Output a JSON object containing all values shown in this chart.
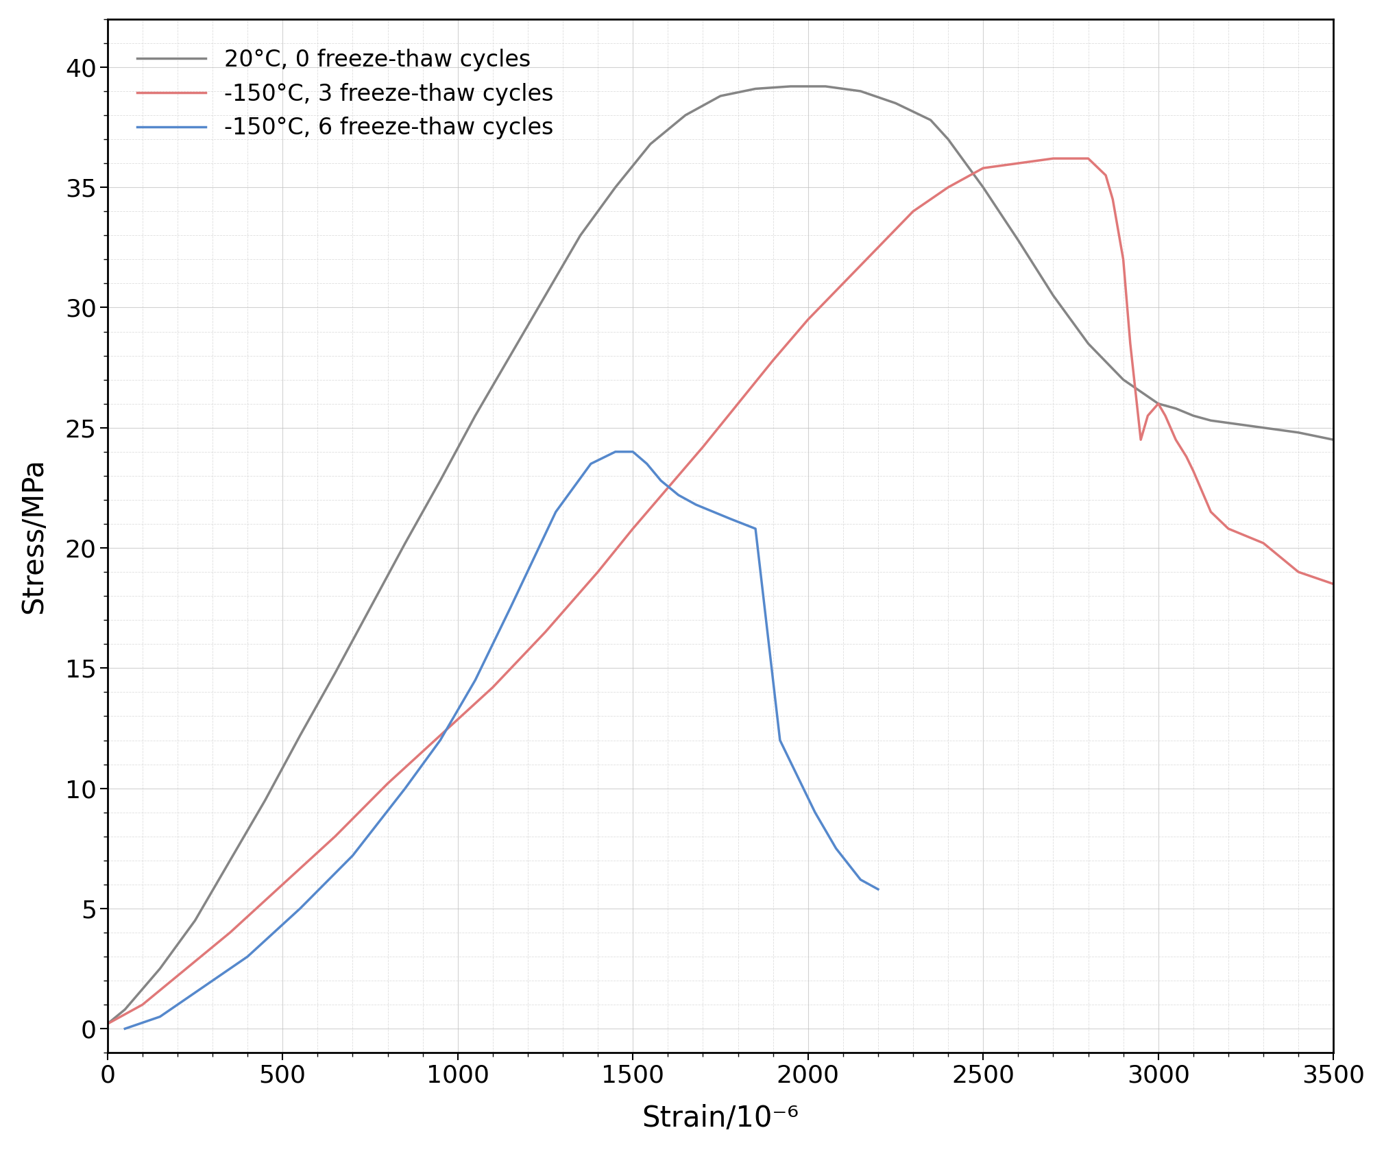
{
  "title": "",
  "xlabel": "Strain/10⁻⁶",
  "ylabel": "Stress/MPa",
  "xlim": [
    0,
    3500
  ],
  "ylim": [
    -1,
    42
  ],
  "xticks": [
    0,
    500,
    1000,
    1500,
    2000,
    2500,
    3000,
    3500
  ],
  "yticks": [
    0,
    5,
    10,
    15,
    20,
    25,
    30,
    35,
    40
  ],
  "background_color": "#ffffff",
  "series": [
    {
      "label": "20°C, 0 freeze-thaw cycles",
      "color": "#858585",
      "linewidth": 2.5,
      "x": [
        0,
        50,
        150,
        250,
        350,
        450,
        550,
        650,
        750,
        850,
        950,
        1050,
        1150,
        1250,
        1350,
        1450,
        1550,
        1650,
        1750,
        1850,
        1950,
        2050,
        2150,
        2250,
        2350,
        2400,
        2500,
        2600,
        2700,
        2800,
        2900,
        2950,
        3000,
        3050,
        3100,
        3150,
        3200,
        3300,
        3400,
        3500
      ],
      "y": [
        0.2,
        0.8,
        2.5,
        4.5,
        7.0,
        9.5,
        12.2,
        14.8,
        17.5,
        20.2,
        22.8,
        25.5,
        28.0,
        30.5,
        33.0,
        35.0,
        36.8,
        38.0,
        38.8,
        39.1,
        39.2,
        39.2,
        39.0,
        38.5,
        37.8,
        37.0,
        35.0,
        32.8,
        30.5,
        28.5,
        27.0,
        26.5,
        26.0,
        25.8,
        25.5,
        25.3,
        25.2,
        25.0,
        24.8,
        24.5
      ]
    },
    {
      "label": "-150°C, 3 freeze-thaw cycles",
      "color": "#e07878",
      "linewidth": 2.5,
      "x": [
        0,
        100,
        200,
        350,
        500,
        650,
        800,
        950,
        1100,
        1250,
        1400,
        1500,
        1600,
        1700,
        1800,
        1900,
        2000,
        2100,
        2200,
        2300,
        2400,
        2500,
        2600,
        2700,
        2800,
        2850,
        2870,
        2900,
        2920,
        2950,
        2970,
        3000,
        3020,
        3050,
        3080,
        3100,
        3150,
        3200,
        3300,
        3400,
        3500
      ],
      "y": [
        0.2,
        1.0,
        2.2,
        4.0,
        6.0,
        8.0,
        10.2,
        12.2,
        14.2,
        16.5,
        19.0,
        20.8,
        22.5,
        24.2,
        26.0,
        27.8,
        29.5,
        31.0,
        32.5,
        34.0,
        35.0,
        35.8,
        36.0,
        36.2,
        36.2,
        35.5,
        34.5,
        32.0,
        28.5,
        24.5,
        25.5,
        26.0,
        25.5,
        24.5,
        23.8,
        23.2,
        21.5,
        20.8,
        20.2,
        19.0,
        18.5
      ]
    },
    {
      "label": "-150°C, 6 freeze-thaw cycles",
      "color": "#5588cc",
      "linewidth": 2.5,
      "x": [
        50,
        150,
        250,
        400,
        550,
        700,
        850,
        950,
        1050,
        1150,
        1280,
        1380,
        1450,
        1500,
        1540,
        1580,
        1630,
        1680,
        1730,
        1780,
        1850,
        1920,
        1970,
        2020,
        2080,
        2150,
        2200
      ],
      "y": [
        0.0,
        0.5,
        1.5,
        3.0,
        5.0,
        7.2,
        10.0,
        12.0,
        14.5,
        17.5,
        21.5,
        23.5,
        24.0,
        24.0,
        23.5,
        22.8,
        22.2,
        21.8,
        21.5,
        21.2,
        20.8,
        12.0,
        10.5,
        9.0,
        7.5,
        6.2,
        5.8
      ]
    }
  ]
}
